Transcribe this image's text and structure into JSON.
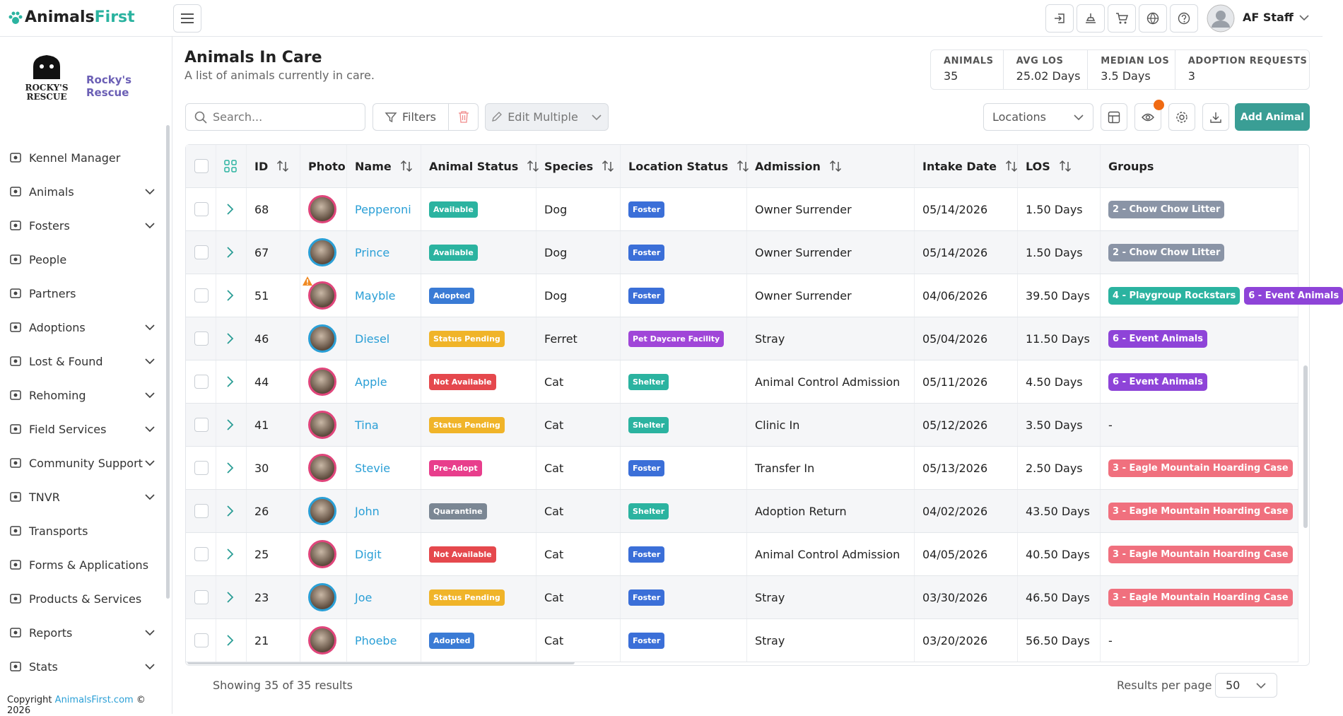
{
  "brand": {
    "part1": "Animals",
    "part2": "First"
  },
  "user": "AF Staff",
  "org": {
    "logo_line1": "ROCKY'S",
    "logo_line2": "RESCUE",
    "name": "Rocky's Rescue"
  },
  "nav": [
    {
      "label": "Kennel Manager",
      "expandable": false
    },
    {
      "label": "Animals",
      "expandable": true
    },
    {
      "label": "Fosters",
      "expandable": true
    },
    {
      "label": "People",
      "expandable": false
    },
    {
      "label": "Partners",
      "expandable": false
    },
    {
      "label": "Adoptions",
      "expandable": true
    },
    {
      "label": "Lost & Found",
      "expandable": true
    },
    {
      "label": "Rehoming",
      "expandable": true
    },
    {
      "label": "Field Services",
      "expandable": true
    },
    {
      "label": "Community Support",
      "expandable": true
    },
    {
      "label": "TNVR",
      "expandable": true
    },
    {
      "label": "Transports",
      "expandable": false
    },
    {
      "label": "Forms & Applications",
      "expandable": false
    },
    {
      "label": "Products & Services",
      "expandable": false
    },
    {
      "label": "Reports",
      "expandable": true
    },
    {
      "label": "Stats",
      "expandable": true
    }
  ],
  "page": {
    "title": "Animals In Care",
    "subtitle": "A list of animals currently in care."
  },
  "stats": [
    {
      "label": "ANIMALS",
      "value": "35"
    },
    {
      "label": "AVG LOS",
      "value": "25.02 Days"
    },
    {
      "label": "MEDIAN LOS",
      "value": "3.5 Days"
    },
    {
      "label": "ADOPTION REQUESTS",
      "value": "3"
    }
  ],
  "toolbar": {
    "search_placeholder": "Search...",
    "filters": "Filters",
    "edit_multiple": "Edit Multiple",
    "locations": "Locations",
    "add": "Add Animal"
  },
  "table": {
    "columns": [
      {
        "label": "ID",
        "sortable": true
      },
      {
        "label": "Photo",
        "sortable": false
      },
      {
        "label": "Name",
        "sortable": true
      },
      {
        "label": "Animal Status",
        "sortable": true
      },
      {
        "label": "Species",
        "sortable": true
      },
      {
        "label": "Location Status",
        "sortable": true
      },
      {
        "label": "Admission",
        "sortable": true
      },
      {
        "label": "Intake Date",
        "sortable": true
      },
      {
        "label": "LOS",
        "sortable": true
      },
      {
        "label": "Groups",
        "sortable": false
      }
    ],
    "rows": [
      {
        "id": "68",
        "name": "Pepperoni",
        "ring": "#e0457b",
        "warning": false,
        "status": {
          "label": "Available",
          "color": "#2bb3a0"
        },
        "species": "Dog",
        "location": {
          "label": "Foster",
          "color": "#3b6fd8"
        },
        "admission": "Owner Surrender",
        "intake": "05/14/2026",
        "los": "1.50 Days",
        "groups": [
          {
            "label": "2 - Chow Chow Litter",
            "color": "#8a94a6"
          }
        ]
      },
      {
        "id": "67",
        "name": "Prince",
        "ring": "#2a9fd6",
        "warning": false,
        "status": {
          "label": "Available",
          "color": "#2bb3a0"
        },
        "species": "Dog",
        "location": {
          "label": "Foster",
          "color": "#3b6fd8"
        },
        "admission": "Owner Surrender",
        "intake": "05/14/2026",
        "los": "1.50 Days",
        "groups": [
          {
            "label": "2 - Chow Chow Litter",
            "color": "#8a94a6"
          }
        ]
      },
      {
        "id": "51",
        "name": "Mayble",
        "ring": "#e0457b",
        "warning": true,
        "status": {
          "label": "Adopted",
          "color": "#3a7bd5"
        },
        "species": "Dog",
        "location": {
          "label": "Foster",
          "color": "#3b6fd8"
        },
        "admission": "Owner Surrender",
        "intake": "04/06/2026",
        "los": "39.50 Days",
        "groups": [
          {
            "label": "4 - Playgroup Rockstars",
            "color": "#2bb3a0"
          },
          {
            "label": "6 - Event Animals",
            "color": "#8e44d8"
          }
        ]
      },
      {
        "id": "46",
        "name": "Diesel",
        "ring": "#2a9fd6",
        "warning": false,
        "status": {
          "label": "Status Pending",
          "color": "#f0b429"
        },
        "species": "Ferret",
        "location": {
          "label": "Pet Daycare Facility",
          "color": "#a046d8"
        },
        "admission": "Stray",
        "intake": "05/04/2026",
        "los": "11.50 Days",
        "groups": [
          {
            "label": "6 - Event Animals",
            "color": "#8e44d8"
          }
        ]
      },
      {
        "id": "44",
        "name": "Apple",
        "ring": "#e0457b",
        "warning": false,
        "status": {
          "label": "Not Available",
          "color": "#e5484d"
        },
        "species": "Cat",
        "location": {
          "label": "Shelter",
          "color": "#2bb3a0"
        },
        "admission": "Animal Control Admission",
        "intake": "05/11/2026",
        "los": "4.50 Days",
        "groups": [
          {
            "label": "6 - Event Animals",
            "color": "#8e44d8"
          }
        ]
      },
      {
        "id": "41",
        "name": "Tina",
        "ring": "#e0457b",
        "warning": false,
        "status": {
          "label": "Status Pending",
          "color": "#f0b429"
        },
        "species": "Cat",
        "location": {
          "label": "Shelter",
          "color": "#2bb3a0"
        },
        "admission": "Clinic In",
        "intake": "05/12/2026",
        "los": "3.50 Days",
        "groups": [],
        "groups_empty": "-"
      },
      {
        "id": "30",
        "name": "Stevie",
        "ring": "#e0457b",
        "warning": false,
        "status": {
          "label": "Pre-Adopt",
          "color": "#e83e8c"
        },
        "species": "Cat",
        "location": {
          "label": "Foster",
          "color": "#3b6fd8"
        },
        "admission": "Transfer In",
        "intake": "05/13/2026",
        "los": "2.50 Days",
        "groups": [
          {
            "label": "3 - Eagle Mountain Hoarding Case",
            "color": "#f0707e"
          }
        ]
      },
      {
        "id": "26",
        "name": "John",
        "ring": "#2a9fd6",
        "warning": false,
        "status": {
          "label": "Quarantine",
          "color": "#7b8794"
        },
        "species": "Cat",
        "location": {
          "label": "Shelter",
          "color": "#2bb3a0"
        },
        "admission": "Adoption Return",
        "intake": "04/02/2026",
        "los": "43.50 Days",
        "groups": [
          {
            "label": "3 - Eagle Mountain Hoarding Case",
            "color": "#f0707e"
          }
        ]
      },
      {
        "id": "25",
        "name": "Digit",
        "ring": "#e0457b",
        "warning": false,
        "status": {
          "label": "Not Available",
          "color": "#e5484d"
        },
        "species": "Cat",
        "location": {
          "label": "Foster",
          "color": "#3b6fd8"
        },
        "admission": "Animal Control Admission",
        "intake": "04/05/2026",
        "los": "40.50 Days",
        "groups": [
          {
            "label": "3 - Eagle Mountain Hoarding Case",
            "color": "#f0707e"
          }
        ]
      },
      {
        "id": "23",
        "name": "Joe",
        "ring": "#2a9fd6",
        "warning": false,
        "status": {
          "label": "Status Pending",
          "color": "#f0b429"
        },
        "species": "Cat",
        "location": {
          "label": "Foster",
          "color": "#3b6fd8"
        },
        "admission": "Stray",
        "intake": "03/30/2026",
        "los": "46.50 Days",
        "groups": [
          {
            "label": "3 - Eagle Mountain Hoarding Case",
            "color": "#f0707e"
          }
        ]
      },
      {
        "id": "21",
        "name": "Phoebe",
        "ring": "#e0457b",
        "warning": false,
        "status": {
          "label": "Adopted",
          "color": "#3a7bd5"
        },
        "species": "Cat",
        "location": {
          "label": "Foster",
          "color": "#3b6fd8"
        },
        "admission": "Stray",
        "intake": "03/20/2026",
        "los": "56.50 Days",
        "groups": [],
        "groups_empty": "-"
      }
    ]
  },
  "footer": {
    "showing": "Showing 35 of 35 results",
    "per_page_label": "Results per page",
    "per_page": "50"
  },
  "copyright": {
    "prefix": "Copyright",
    "link": "AnimalsFirst.com",
    "suffix": "© 2026"
  }
}
